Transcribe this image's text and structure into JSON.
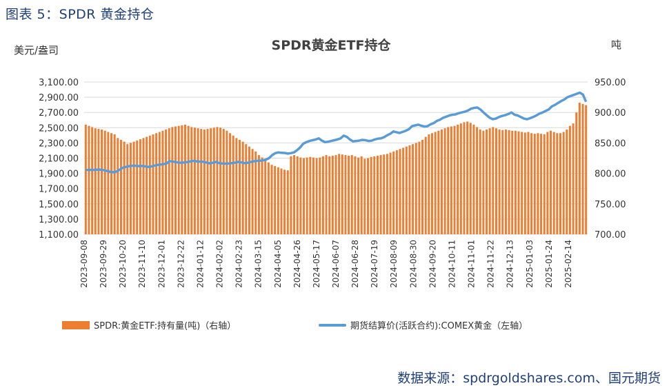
{
  "figure_caption": "图表 5：SPDR 黄金持仓",
  "source_note": "数据来源：spdrgoldshares.com、国元期货",
  "colors": {
    "bar": "#ed7d31",
    "line": "#5b9bd5",
    "caption": "#1f3f7a",
    "grid": "#d9d9d9"
  },
  "chart_data": {
    "type": "bar+line",
    "title": "SPDR黄金ETF持仓",
    "left_axis_label": "美元/盎司",
    "right_axis_label": "吨",
    "left_ylim": [
      1100,
      3100
    ],
    "left_ticks": [
      "3,100.00",
      "2,900.00",
      "2,700.00",
      "2,500.00",
      "2,300.00",
      "2,100.00",
      "1,900.00",
      "1,700.00",
      "1,500.00",
      "1,300.00",
      "1,100.00"
    ],
    "right_ylim": [
      700,
      950
    ],
    "right_ticks": [
      "950.00",
      "900.00",
      "850.00",
      "800.00",
      "750.00",
      "700.00"
    ],
    "x_tick_labels": [
      "2023-09-08",
      "2023-09-29",
      "2023-10-20",
      "2023-11-10",
      "2023-12-01",
      "2023-12-22",
      "2024-01-12",
      "2024-02-02",
      "2024-02-23",
      "2024-03-15",
      "2024-04-05",
      "2024-04-26",
      "2024-05-17",
      "2024-06-07",
      "2024-06-28",
      "2024-07-19",
      "2024-08-09",
      "2024-08-30",
      "2024-09-20",
      "2024-10-11",
      "2024-11-01",
      "2024-11-22",
      "2024-12-13",
      "2025-01-03",
      "2025-01-24",
      "2025-02-14"
    ],
    "series": [
      {
        "name": "SPDR:黄金ETF:持有量(吨)（右轴）",
        "type": "bar",
        "axis": "right",
        "values": [
          880,
          878,
          876,
          874,
          873,
          872,
          870,
          868,
          866,
          864,
          858,
          855,
          852,
          848,
          850,
          852,
          854,
          856,
          858,
          860,
          862,
          864,
          866,
          868,
          870,
          872,
          874,
          876,
          877,
          878,
          879,
          880,
          878,
          876,
          875,
          874,
          873,
          872,
          873,
          874,
          875,
          876,
          875,
          873,
          870,
          866,
          862,
          858,
          855,
          852,
          848,
          844,
          840,
          836,
          830,
          826,
          822,
          818,
          814,
          812,
          810,
          808,
          806,
          805,
          828,
          830,
          828,
          826,
          825,
          826,
          827,
          826,
          825,
          826,
          828,
          830,
          828,
          829,
          830,
          832,
          831,
          830,
          829,
          830,
          828,
          826,
          828,
          824,
          825,
          827,
          828,
          829,
          830,
          831,
          832,
          834,
          836,
          838,
          840,
          842,
          844,
          846,
          848,
          850,
          852,
          855,
          860,
          864,
          866,
          868,
          870,
          872,
          874,
          876,
          877,
          878,
          880,
          882,
          884,
          885,
          883,
          880,
          876,
          872,
          870,
          872,
          874,
          876,
          874,
          872,
          871,
          872,
          871,
          870,
          870,
          869,
          868,
          867,
          868,
          866,
          865,
          866,
          865,
          864,
          868,
          870,
          868,
          866,
          866,
          868,
          872,
          878,
          882,
          900,
          916,
          914,
          912
        ]
      },
      {
        "name": "期货结算价(活跃合约):COMEX黄金（左轴）",
        "type": "line",
        "axis": "left",
        "values": [
          1945,
          1944,
          1946,
          1945,
          1950,
          1948,
          1942,
          1930,
          1920,
          1915,
          1925,
          1950,
          1975,
          1985,
          1995,
          2000,
          2000,
          1995,
          1998,
          1992,
          1985,
          1990,
          2000,
          2010,
          2015,
          2020,
          2030,
          2060,
          2055,
          2048,
          2040,
          2040,
          2045,
          2050,
          2060,
          2065,
          2055,
          2055,
          2050,
          2040,
          2030,
          2040,
          2050,
          2035,
          2030,
          2028,
          2030,
          2035,
          2040,
          2050,
          2045,
          2035,
          2038,
          2048,
          2058,
          2064,
          2066,
          2070,
          2080,
          2100,
          2140,
          2165,
          2175,
          2170,
          2168,
          2160,
          2165,
          2175,
          2205,
          2240,
          2290,
          2310,
          2325,
          2335,
          2345,
          2360,
          2330,
          2310,
          2315,
          2325,
          2335,
          2345,
          2360,
          2395,
          2380,
          2345,
          2320,
          2325,
          2330,
          2340,
          2335,
          2325,
          2330,
          2345,
          2355,
          2360,
          2375,
          2400,
          2420,
          2450,
          2440,
          2430,
          2445,
          2460,
          2480,
          2520,
          2530,
          2540,
          2525,
          2515,
          2520,
          2545,
          2560,
          2590,
          2605,
          2630,
          2645,
          2660,
          2670,
          2675,
          2690,
          2700,
          2710,
          2725,
          2750,
          2760,
          2765,
          2740,
          2700,
          2665,
          2630,
          2610,
          2620,
          2640,
          2655,
          2665,
          2680,
          2700,
          2670,
          2660,
          2640,
          2620,
          2610,
          2625,
          2640,
          2660,
          2685,
          2700,
          2720,
          2740,
          2780,
          2800,
          2825,
          2850,
          2870,
          2900,
          2915,
          2930,
          2945,
          2960,
          2935,
          2840
        ]
      }
    ]
  },
  "legend": {
    "bar_label": "SPDR:黄金ETF:持有量(吨)（右轴）",
    "line_label": "期货结算价(活跃合约):COMEX黄金（左轴）"
  }
}
